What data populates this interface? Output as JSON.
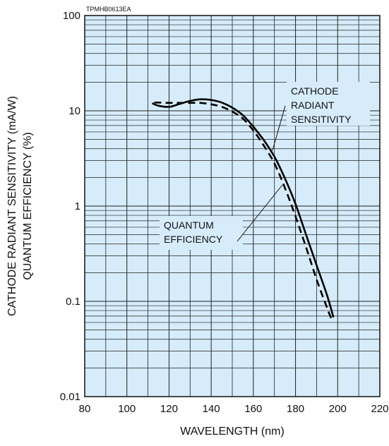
{
  "figure_code": "TPMHB0613EA",
  "chart_data": {
    "type": "line",
    "title": "",
    "xlabel": "WAVELENGTH (nm)",
    "ylabel_lines": [
      "CATHODE RADIANT SENSITIVITY (mA/W)",
      "QUANTUM EFFICIENCY (%)"
    ],
    "xlim": [
      80,
      220
    ],
    "ylim": [
      0.01,
      100
    ],
    "yscale": "log",
    "x_ticks": [
      "80",
      "100",
      "120",
      "140",
      "160",
      "180",
      "200",
      "220"
    ],
    "y_ticks": [
      "0.01",
      "0.1",
      "1",
      "10",
      "100"
    ],
    "grid": true,
    "background_color": "#d6ecfa",
    "series": [
      {
        "name": "CATHODE RADIANT SENSITIVITY",
        "style": "solid",
        "points": [
          [
            112,
            12
          ],
          [
            115,
            11.3
          ],
          [
            120,
            11
          ],
          [
            125,
            11.8
          ],
          [
            130,
            12.7
          ],
          [
            135,
            13.2
          ],
          [
            140,
            13
          ],
          [
            145,
            12.2
          ],
          [
            150,
            10.8
          ],
          [
            155,
            9
          ],
          [
            160,
            6.8
          ],
          [
            165,
            4.9
          ],
          [
            170,
            3.3
          ],
          [
            175,
            1.95
          ],
          [
            180,
            1.05
          ],
          [
            185,
            0.5
          ],
          [
            190,
            0.24
          ],
          [
            195,
            0.115
          ],
          [
            198,
            0.068
          ]
        ]
      },
      {
        "name": "QUANTUM EFFICIENCY",
        "style": "dashed",
        "points": [
          [
            113,
            12.2
          ],
          [
            115,
            12.2
          ],
          [
            120,
            12.1
          ],
          [
            125,
            12.1
          ],
          [
            130,
            12.1
          ],
          [
            135,
            12.1
          ],
          [
            140,
            11.7
          ],
          [
            145,
            11
          ],
          [
            150,
            9.8
          ],
          [
            155,
            8.3
          ],
          [
            160,
            6.2
          ],
          [
            165,
            4.3
          ],
          [
            170,
            2.8
          ],
          [
            175,
            1.55
          ],
          [
            180,
            0.78
          ],
          [
            185,
            0.37
          ],
          [
            190,
            0.17
          ],
          [
            195,
            0.085
          ],
          [
            197,
            0.066
          ]
        ]
      }
    ],
    "annotations": [
      {
        "lines": [
          "CATHODE",
          "RADIANT",
          "SENSITIVITY"
        ],
        "target_series": "CATHODE RADIANT SENSITIVITY"
      },
      {
        "lines": [
          "QUANTUM",
          "EFFICIENCY"
        ],
        "target_series": "QUANTUM EFFICIENCY"
      }
    ]
  },
  "colors": {
    "background": "#d6ecfa",
    "grid": "#222222",
    "curve": "#000000"
  }
}
